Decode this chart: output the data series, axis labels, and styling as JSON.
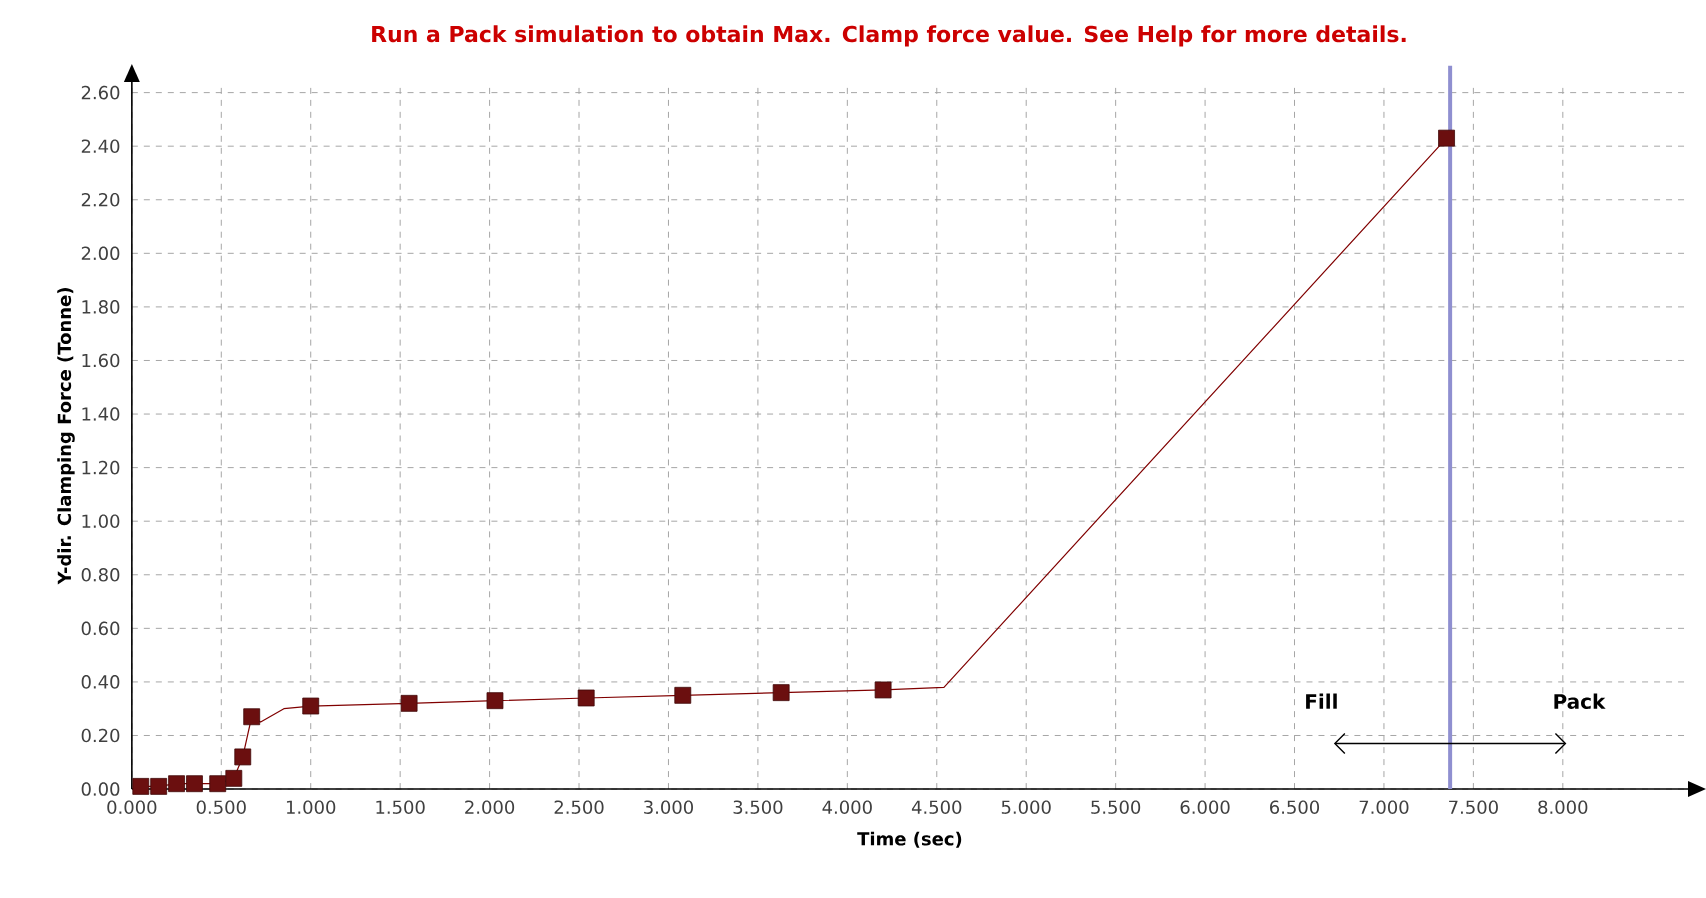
{
  "chart_data": {
    "type": "line",
    "title": "Run a Pack simulation to obtain Max. Clamp force value. See Help for more details.",
    "xlabel": "Time (sec)",
    "ylabel": "Y-dir. Clamping Force (Tonne)",
    "series": [
      {
        "color": "#800000",
        "marker": "none",
        "x": [
          0.05,
          0.15,
          0.25,
          0.35,
          0.48,
          0.57,
          0.62,
          0.67,
          0.72,
          0.85,
          1.0,
          1.55,
          2.03,
          2.54,
          3.08,
          3.63,
          4.2,
          4.54,
          7.35
        ],
        "values": [
          0.01,
          0.01,
          0.02,
          0.02,
          0.02,
          0.04,
          0.12,
          0.27,
          0.25,
          0.3,
          0.31,
          0.32,
          0.33,
          0.34,
          0.35,
          0.36,
          0.37,
          0.38,
          2.43
        ]
      },
      {
        "type": "scatter",
        "color": "#6b0f0f",
        "marker": "square",
        "x": [
          0.05,
          0.15,
          0.25,
          0.35,
          0.48,
          0.57,
          0.62,
          0.67,
          1.0,
          1.55,
          2.03,
          2.54,
          3.08,
          3.63,
          4.2,
          7.35
        ],
        "values": [
          0.01,
          0.01,
          0.02,
          0.02,
          0.02,
          0.04,
          0.12,
          0.27,
          0.31,
          0.32,
          0.33,
          0.34,
          0.35,
          0.36,
          0.37,
          2.43
        ]
      }
    ],
    "xlim": [
      0,
      8.7
    ],
    "ylim": [
      0,
      2.64
    ],
    "xticks": [
      {
        "value": 0,
        "label": "0.000"
      },
      {
        "value": 0.5,
        "label": "0.500"
      },
      {
        "value": 1,
        "label": "1.000"
      },
      {
        "value": 1.5,
        "label": "1.500"
      },
      {
        "value": 2,
        "label": "2.000"
      },
      {
        "value": 2.5,
        "label": "2.500"
      },
      {
        "value": 3,
        "label": "3.000"
      },
      {
        "value": 3.5,
        "label": "3.500"
      },
      {
        "value": 4,
        "label": "4.000"
      },
      {
        "value": 4.5,
        "label": "4.500"
      },
      {
        "value": 5,
        "label": "5.000"
      },
      {
        "value": 5.5,
        "label": "5.500"
      },
      {
        "value": 6,
        "label": "6.000"
      },
      {
        "value": 6.5,
        "label": "6.500"
      },
      {
        "value": 7,
        "label": "7.000"
      },
      {
        "value": 7.5,
        "label": "7.500"
      },
      {
        "value": 8,
        "label": "8.000"
      }
    ],
    "yticks": [
      {
        "value": 0,
        "label": "0.00"
      },
      {
        "value": 0.2,
        "label": "0.20"
      },
      {
        "value": 0.4,
        "label": "0.40"
      },
      {
        "value": 0.6,
        "label": "0.60"
      },
      {
        "value": 0.8,
        "label": "0.80"
      },
      {
        "value": 1,
        "label": "1.00"
      },
      {
        "value": 1.2,
        "label": "1.20"
      },
      {
        "value": 1.4,
        "label": "1.40"
      },
      {
        "value": 1.6,
        "label": "1.60"
      },
      {
        "value": 1.8,
        "label": "1.80"
      },
      {
        "value": 2,
        "label": "2.00"
      },
      {
        "value": 2.2,
        "label": "2.20"
      },
      {
        "value": 2.4,
        "label": "2.40"
      },
      {
        "value": 2.6,
        "label": "2.60"
      }
    ],
    "grid": true,
    "ref_lines": [
      {
        "axis": "x",
        "value": 7.37,
        "color": "#8f8fd0"
      }
    ],
    "annotations": [
      "Fill",
      "Pack"
    ]
  }
}
